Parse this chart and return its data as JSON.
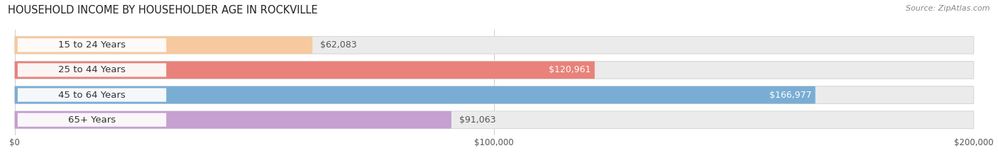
{
  "title": "HOUSEHOLD INCOME BY HOUSEHOLDER AGE IN ROCKVILLE",
  "source": "Source: ZipAtlas.com",
  "categories": [
    "15 to 24 Years",
    "25 to 44 Years",
    "45 to 64 Years",
    "65+ Years"
  ],
  "values": [
    62083,
    120961,
    166977,
    91063
  ],
  "bar_colors": [
    "#f7c99e",
    "#e8827a",
    "#7aadd4",
    "#c5a0d0"
  ],
  "label_text_colors": [
    "#333333",
    "#333333",
    "#333333",
    "#333333"
  ],
  "value_colors_inside": [
    "#ffffff",
    "#ffffff",
    "#ffffff",
    "#ffffff"
  ],
  "value_colors_outside": [
    "#555555",
    "#555555",
    "#555555",
    "#555555"
  ],
  "background_color": "#ffffff",
  "bar_bg_color": "#ebebeb",
  "bar_bg_edge": "#d8d8d8",
  "xlim_max": 200000,
  "xtick_labels": [
    "$0",
    "$100,000",
    "$200,000"
  ],
  "xtick_vals": [
    0,
    100000,
    200000
  ],
  "title_fontsize": 10.5,
  "source_fontsize": 8,
  "label_fontsize": 9.5,
  "value_fontsize": 9,
  "bar_height": 0.7,
  "figsize": [
    14.06,
    2.33
  ],
  "dpi": 100,
  "value_inside_threshold": 0.58
}
